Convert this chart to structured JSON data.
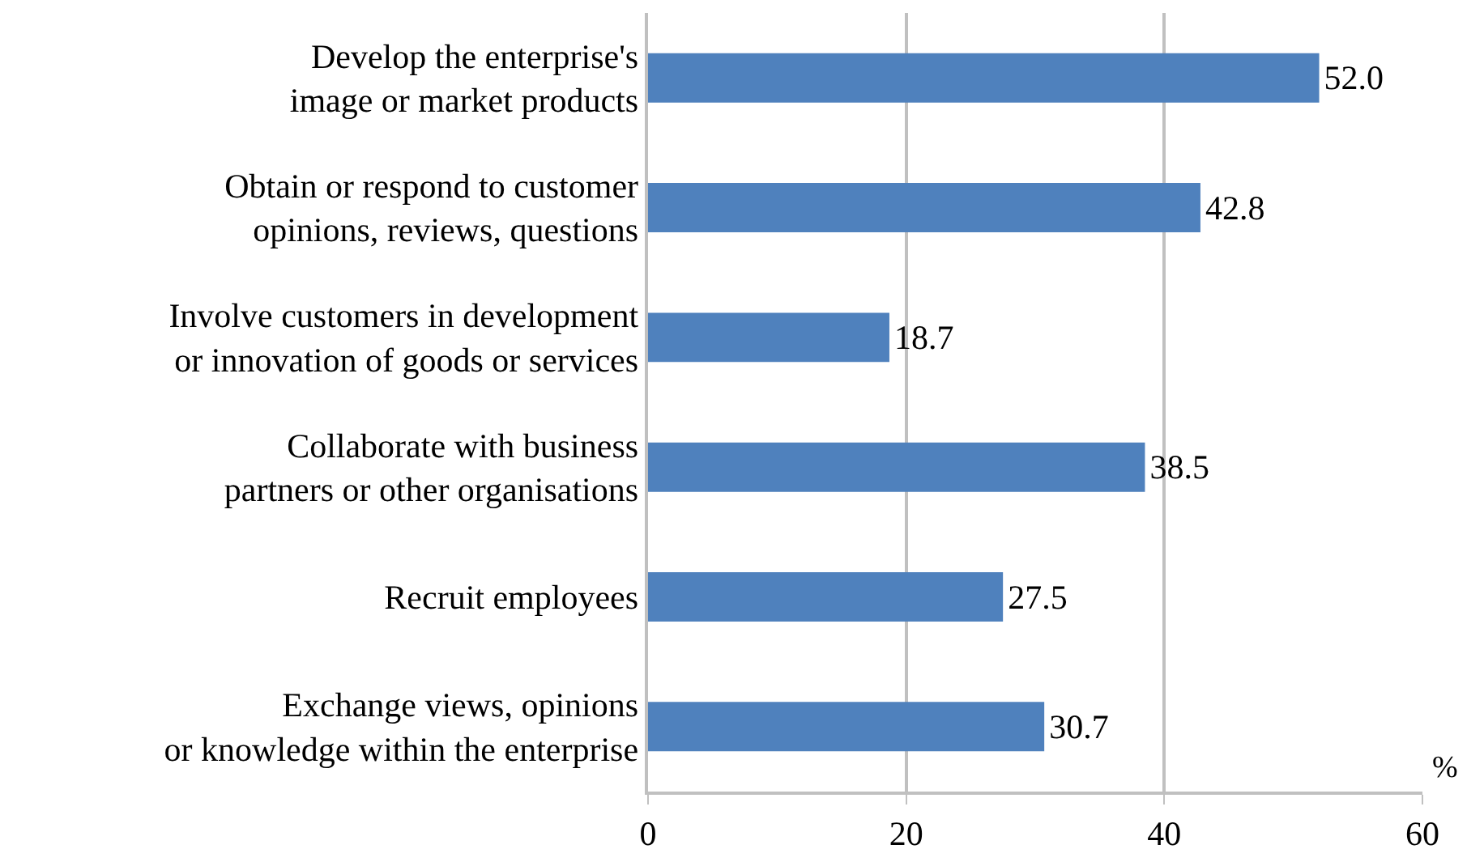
{
  "chart_data": {
    "type": "bar",
    "orientation": "horizontal",
    "xlabel": "%",
    "categories": [
      "Develop the enterprise's\nimage or market products",
      "Obtain or respond to customer\nopinions, reviews, questions",
      "Involve customers in development\nor innovation of goods or services",
      "Collaborate with business\npartners or other organisations",
      "Recruit employees",
      "Exchange views, opinions\nor knowledge within the enterprise"
    ],
    "values": [
      52.0,
      42.8,
      18.7,
      38.5,
      27.5,
      30.7
    ],
    "value_labels": [
      "52.0",
      "42.8",
      "18.7",
      "38.5",
      "27.5",
      "30.7"
    ],
    "color": "#4f81bd",
    "xlim": [
      0,
      60
    ],
    "xticks": [
      0,
      20,
      40,
      60
    ],
    "grid": "x",
    "legend": false
  }
}
